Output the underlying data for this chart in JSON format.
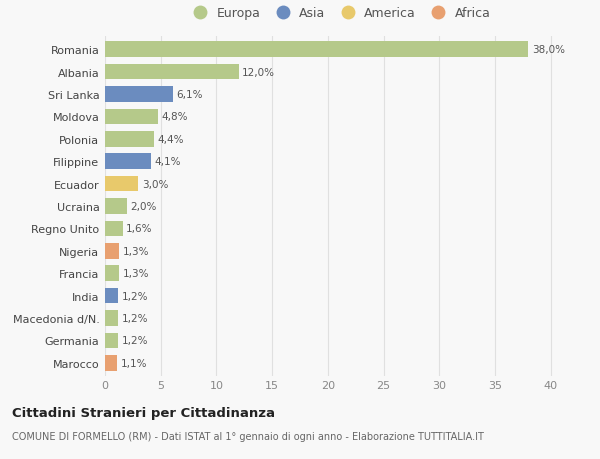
{
  "categories": [
    "Romania",
    "Albania",
    "Sri Lanka",
    "Moldova",
    "Polonia",
    "Filippine",
    "Ecuador",
    "Ucraina",
    "Regno Unito",
    "Nigeria",
    "Francia",
    "India",
    "Macedonia d/N.",
    "Germania",
    "Marocco"
  ],
  "values": [
    38.0,
    12.0,
    6.1,
    4.8,
    4.4,
    4.1,
    3.0,
    2.0,
    1.6,
    1.3,
    1.3,
    1.2,
    1.2,
    1.2,
    1.1
  ],
  "labels": [
    "38,0%",
    "12,0%",
    "6,1%",
    "4,8%",
    "4,4%",
    "4,1%",
    "3,0%",
    "2,0%",
    "1,6%",
    "1,3%",
    "1,3%",
    "1,2%",
    "1,2%",
    "1,2%",
    "1,1%"
  ],
  "colors": [
    "#b5c98a",
    "#b5c98a",
    "#6b8cbf",
    "#b5c98a",
    "#b5c98a",
    "#6b8cbf",
    "#e8c96b",
    "#b5c98a",
    "#b5c98a",
    "#e8a070",
    "#b5c98a",
    "#6b8cbf",
    "#b5c98a",
    "#b5c98a",
    "#e8a070"
  ],
  "legend_labels": [
    "Europa",
    "Asia",
    "America",
    "Africa"
  ],
  "legend_colors": [
    "#b5c98a",
    "#6b8cbf",
    "#e8c96b",
    "#e8a070"
  ],
  "title": "Cittadini Stranieri per Cittadinanza",
  "subtitle": "COMUNE DI FORMELLO (RM) - Dati ISTAT al 1° gennaio di ogni anno - Elaborazione TUTTITALIA.IT",
  "xlim": [
    0,
    42
  ],
  "xticks": [
    0,
    5,
    10,
    15,
    20,
    25,
    30,
    35,
    40
  ],
  "background_color": "#f8f8f8",
  "grid_color": "#e0e0e0",
  "bar_height": 0.7
}
